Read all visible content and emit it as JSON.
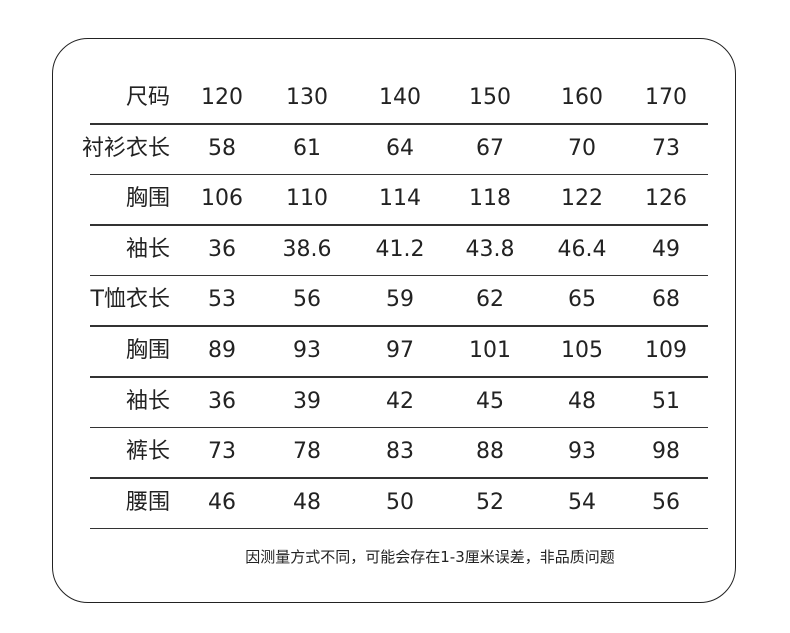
{
  "table": {
    "header": {
      "label": "尺码",
      "values": [
        "120",
        "130",
        "140",
        "150",
        "160",
        "170"
      ]
    },
    "rows": [
      {
        "label": "衬衫衣长",
        "values": [
          "58",
          "61",
          "64",
          "67",
          "70",
          "73"
        ]
      },
      {
        "label": "胸围",
        "values": [
          "106",
          "110",
          "114",
          "118",
          "122",
          "126"
        ]
      },
      {
        "label": "袖长",
        "values": [
          "36",
          "38.6",
          "41.2",
          "43.8",
          "46.4",
          "49"
        ]
      },
      {
        "label": "T恤衣长",
        "values": [
          "53",
          "56",
          "59",
          "62",
          "65",
          "68"
        ]
      },
      {
        "label": "胸围",
        "values": [
          "89",
          "93",
          "97",
          "101",
          "105",
          "109"
        ]
      },
      {
        "label": "袖长",
        "values": [
          "36",
          "39",
          "42",
          "45",
          "48",
          "51"
        ]
      },
      {
        "label": "裤长",
        "values": [
          "73",
          "78",
          "83",
          "88",
          "93",
          "98"
        ]
      },
      {
        "label": "腰围",
        "values": [
          "46",
          "48",
          "50",
          "52",
          "54",
          "56"
        ]
      }
    ]
  },
  "note": "因测量方式不同，可能会存在1-3厘米误差，非品质问题"
}
